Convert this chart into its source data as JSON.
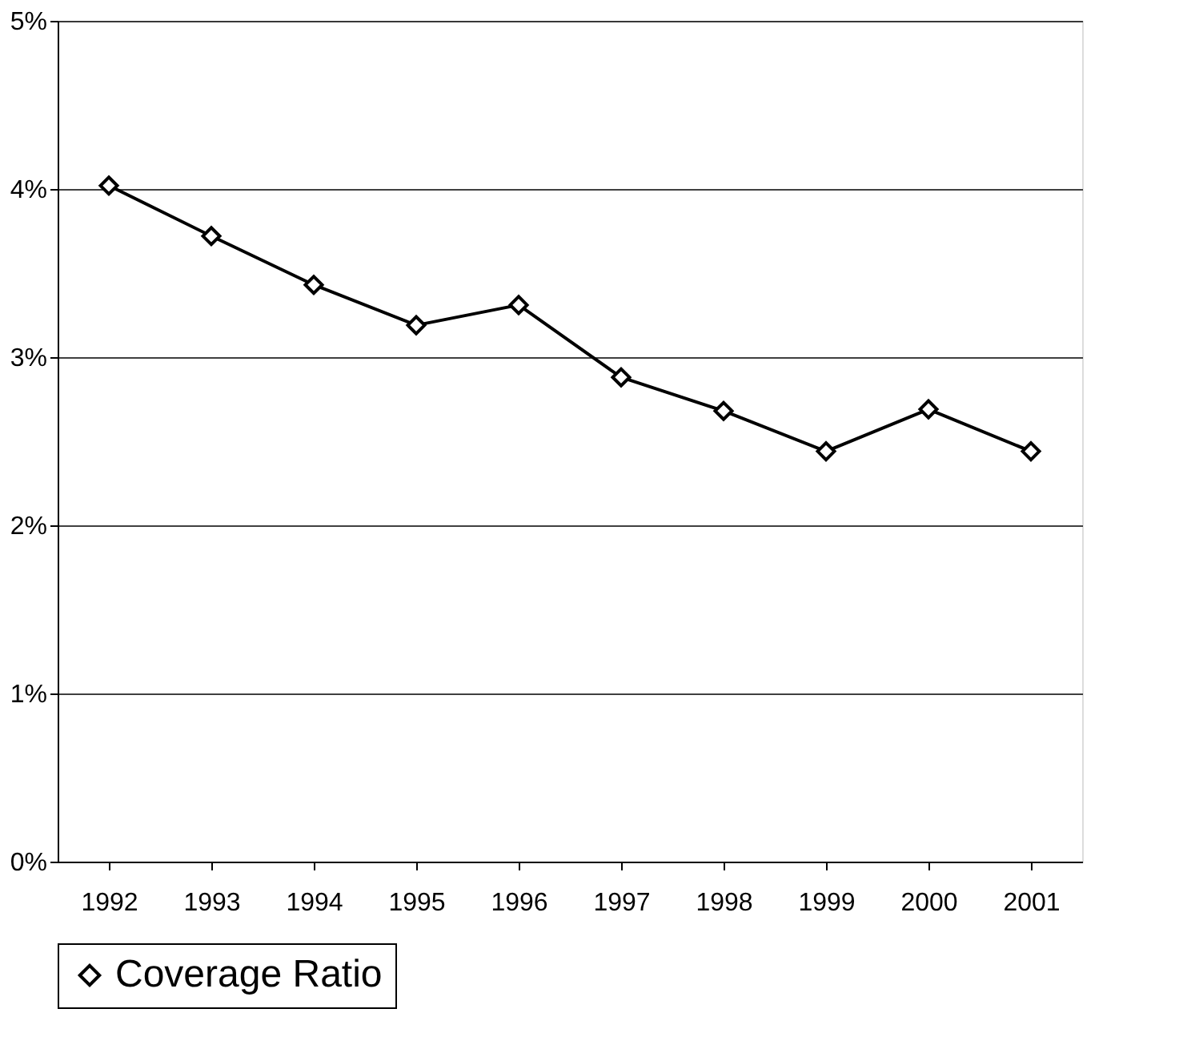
{
  "chart_data": {
    "type": "line",
    "categories": [
      "1992",
      "1993",
      "1994",
      "1995",
      "1996",
      "1997",
      "1998",
      "1999",
      "2000",
      "2001"
    ],
    "series": [
      {
        "name": "Coverage Ratio",
        "color": "#000000",
        "values": [
          4.02,
          3.72,
          3.43,
          3.19,
          3.31,
          2.88,
          2.68,
          2.44,
          2.69,
          2.44
        ]
      }
    ],
    "ylim": [
      0,
      5
    ],
    "yticks": [
      {
        "value": 0,
        "label": "0%"
      },
      {
        "value": 1,
        "label": "1%"
      },
      {
        "value": 2,
        "label": "2%"
      },
      {
        "value": 3,
        "label": "3%"
      },
      {
        "value": 4,
        "label": "4%"
      },
      {
        "value": 5,
        "label": "5%"
      }
    ],
    "grid": "y",
    "legend": "bottom",
    "marker": "diamond",
    "line_style": "solid"
  }
}
